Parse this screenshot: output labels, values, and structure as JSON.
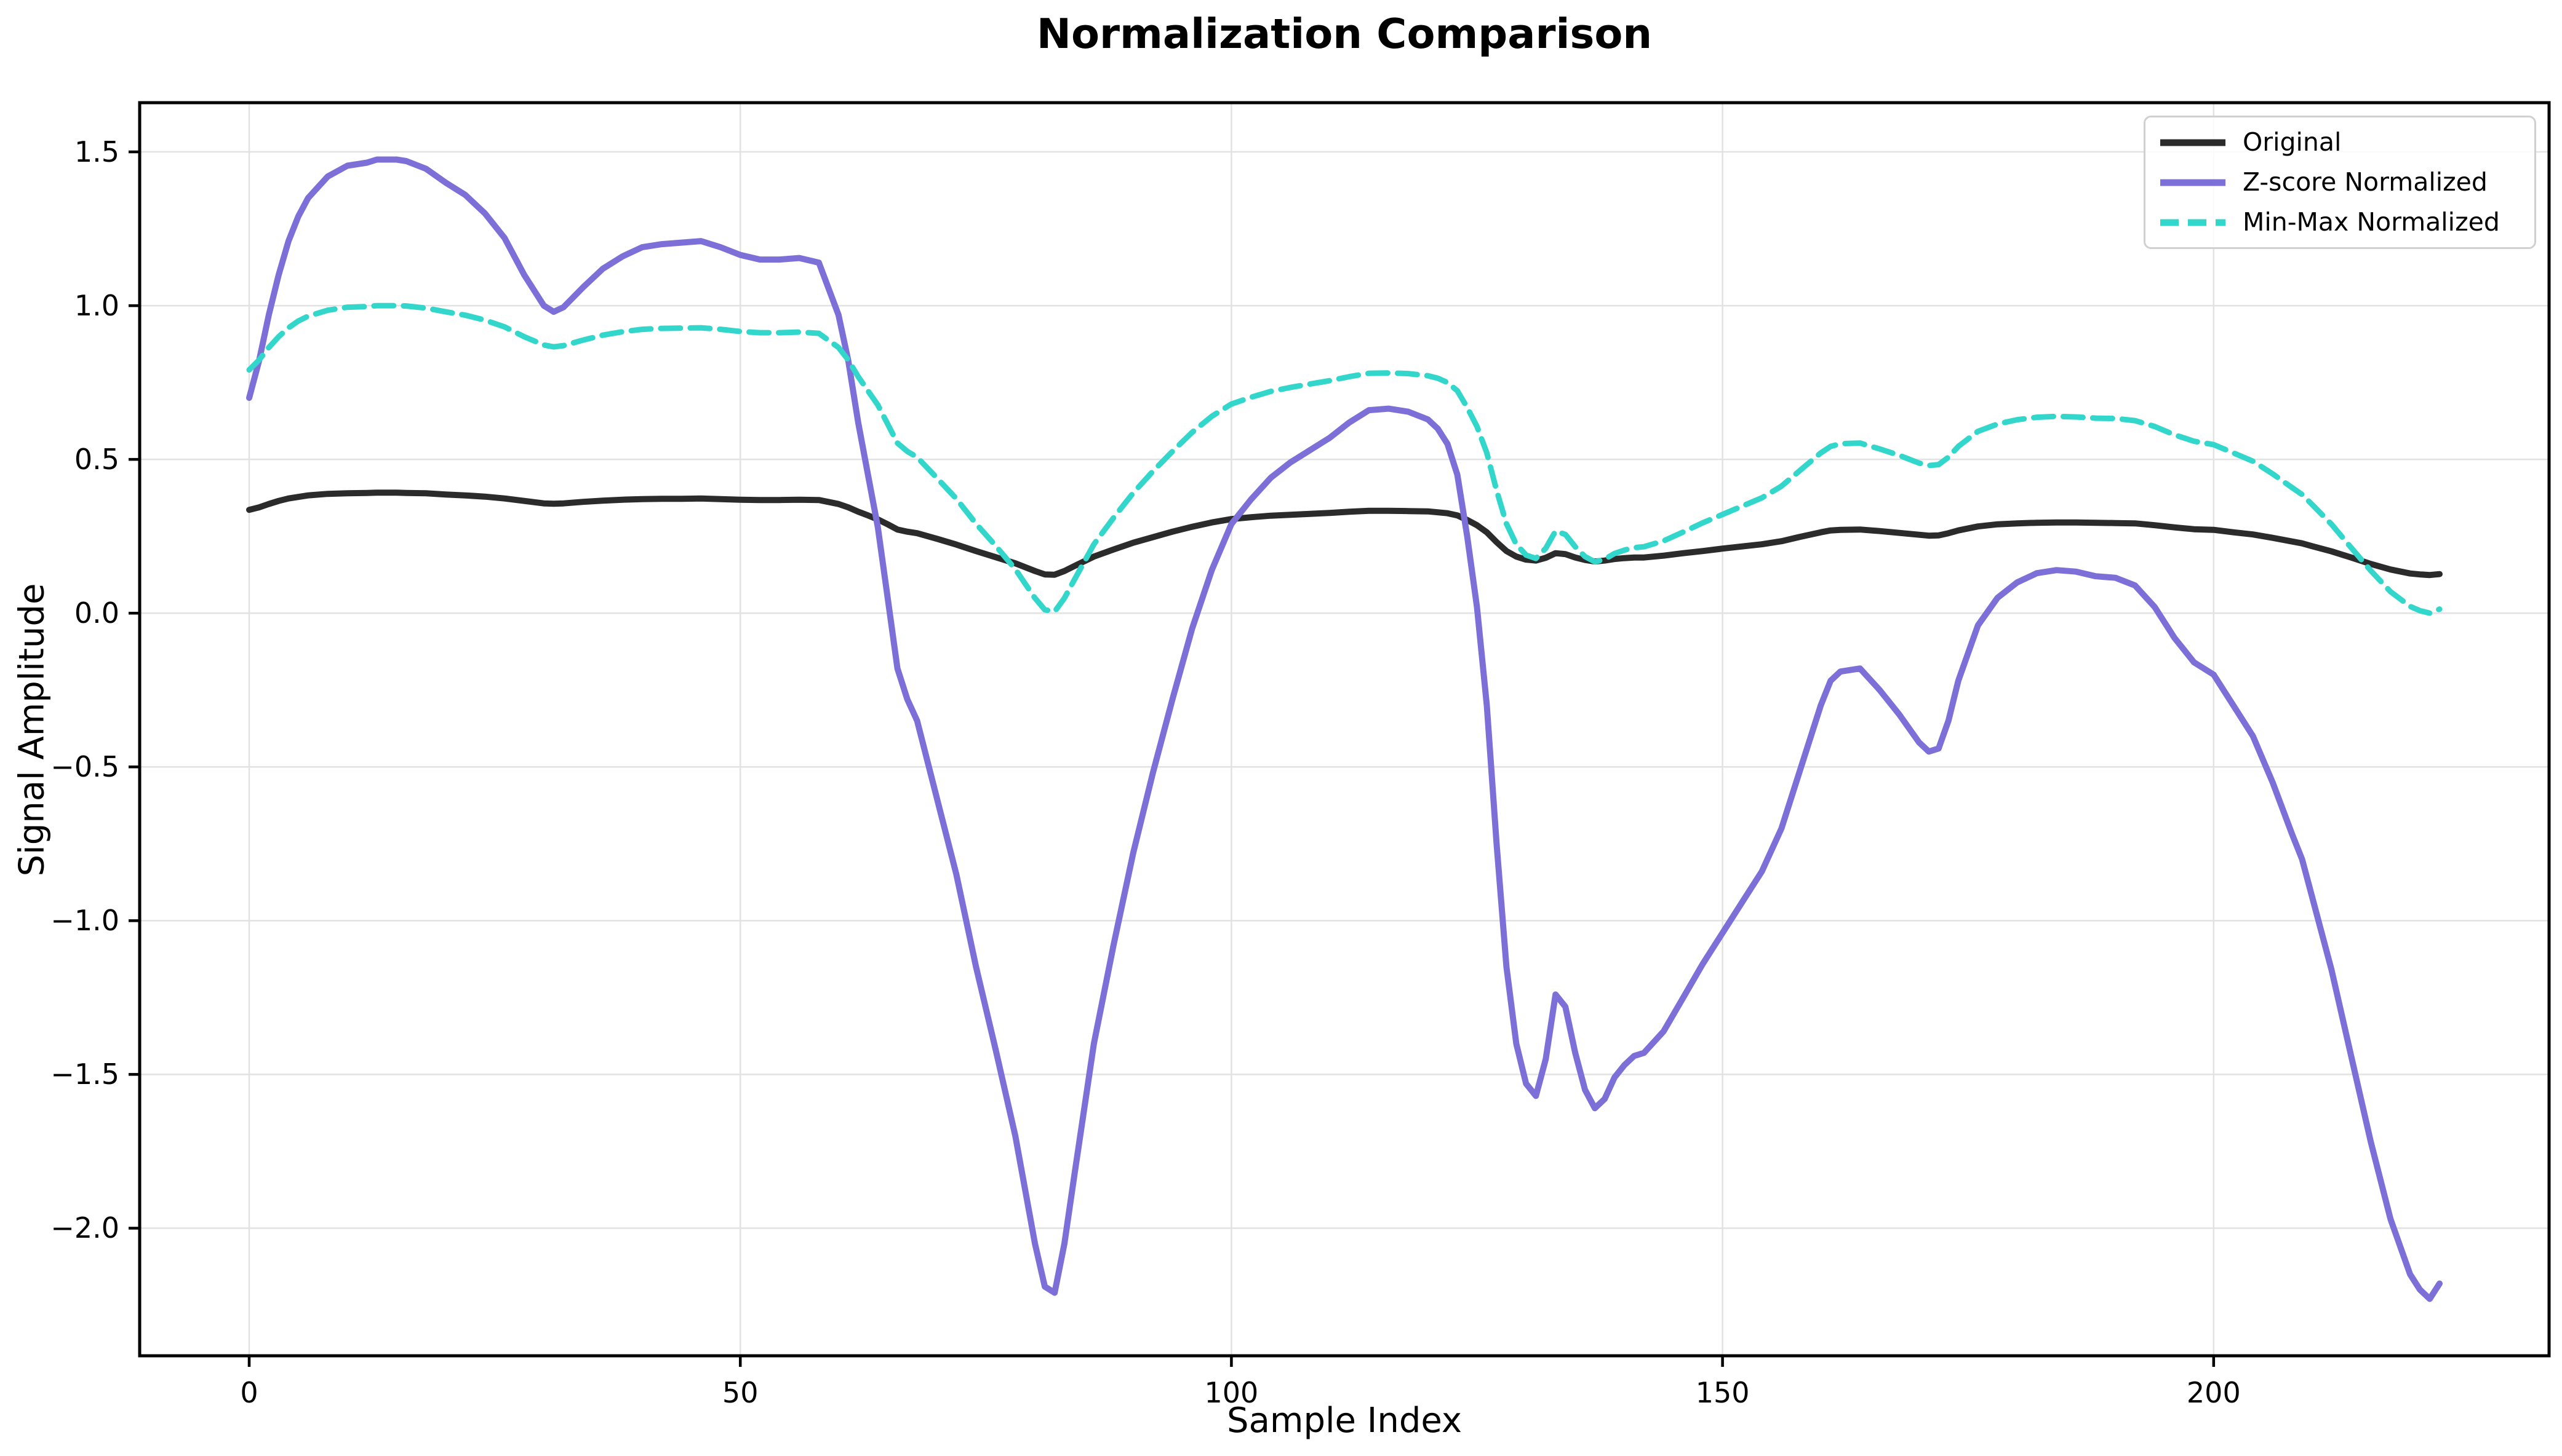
{
  "page": {
    "background": "#ffffff"
  },
  "chart_data": {
    "type": "line",
    "title": "Normalization Comparison",
    "xlabel": "Sample Index",
    "ylabel": "Signal Amplitude",
    "xlim": [
      -11.15,
      234.15
    ],
    "ylim": [
      -2.415,
      1.66
    ],
    "xticks": [
      0,
      50,
      100,
      150,
      200
    ],
    "yticks": [
      1.5,
      1.0,
      0.5,
      0.0,
      -0.5,
      -1.0,
      -1.5,
      -2.0
    ],
    "grid": true,
    "grid_color": "#e2e2e2",
    "spine_color": "#000000",
    "legend_position": "upper right",
    "x": [
      0,
      1,
      2,
      3,
      4,
      5,
      6,
      8,
      10,
      12,
      13,
      15,
      16,
      18,
      20,
      22,
      24,
      26,
      28,
      30,
      31,
      32,
      34,
      36,
      38,
      40,
      42,
      44,
      46,
      48,
      50,
      52,
      54,
      56,
      58,
      60,
      61,
      62,
      63,
      64,
      65,
      66,
      67,
      68,
      70,
      72,
      74,
      76,
      78,
      80,
      81,
      82,
      83,
      84,
      86,
      88,
      90,
      92,
      94,
      96,
      98,
      100,
      102,
      104,
      106,
      108,
      110,
      112,
      114,
      116,
      118,
      120,
      121,
      122,
      123,
      124,
      125,
      126,
      127,
      128,
      129,
      130,
      131,
      132,
      133,
      134,
      135,
      136,
      137,
      138,
      139,
      140,
      141,
      142,
      144,
      146,
      148,
      150,
      152,
      154,
      156,
      158,
      160,
      161,
      162,
      164,
      166,
      168,
      170,
      171,
      172,
      173,
      174,
      176,
      178,
      180,
      182,
      184,
      186,
      188,
      190,
      192,
      194,
      196,
      198,
      200,
      202,
      204,
      206,
      208,
      209,
      210,
      212,
      214,
      216,
      218,
      220,
      221,
      222,
      223
    ],
    "series": [
      {
        "name": "Original",
        "color": "#2b2b2b",
        "style": "solid",
        "line_width": 10,
        "values": [
          0.336,
          0.344,
          0.355,
          0.365,
          0.373,
          0.378,
          0.383,
          0.388,
          0.39,
          0.391,
          0.392,
          0.392,
          0.391,
          0.39,
          0.386,
          0.383,
          0.379,
          0.373,
          0.365,
          0.357,
          0.356,
          0.357,
          0.362,
          0.366,
          0.369,
          0.371,
          0.372,
          0.372,
          0.373,
          0.371,
          0.369,
          0.368,
          0.368,
          0.369,
          0.368,
          0.355,
          0.344,
          0.33,
          0.318,
          0.305,
          0.289,
          0.272,
          0.265,
          0.26,
          0.242,
          0.223,
          0.202,
          0.182,
          0.162,
          0.137,
          0.126,
          0.125,
          0.137,
          0.153,
          0.184,
          0.207,
          0.229,
          0.247,
          0.265,
          0.281,
          0.295,
          0.306,
          0.312,
          0.317,
          0.32,
          0.323,
          0.326,
          0.33,
          0.333,
          0.333,
          0.332,
          0.331,
          0.328,
          0.325,
          0.318,
          0.303,
          0.286,
          0.263,
          0.231,
          0.202,
          0.184,
          0.174,
          0.171,
          0.18,
          0.195,
          0.192,
          0.181,
          0.173,
          0.168,
          0.171,
          0.176,
          0.179,
          0.181,
          0.181,
          0.187,
          0.195,
          0.202,
          0.21,
          0.217,
          0.224,
          0.234,
          0.249,
          0.263,
          0.269,
          0.271,
          0.272,
          0.267,
          0.261,
          0.255,
          0.252,
          0.253,
          0.26,
          0.269,
          0.282,
          0.289,
          0.292,
          0.294,
          0.295,
          0.295,
          0.294,
          0.293,
          0.292,
          0.286,
          0.279,
          0.273,
          0.271,
          0.263,
          0.256,
          0.245,
          0.233,
          0.227,
          0.218,
          0.201,
          0.181,
          0.16,
          0.142,
          0.129,
          0.126,
          0.124,
          0.127
        ]
      },
      {
        "name": "Z-score Normalized",
        "color": "#7d6fd8",
        "style": "solid",
        "line_width": 10,
        "values": [
          0.7,
          0.82,
          0.97,
          1.1,
          1.21,
          1.29,
          1.35,
          1.42,
          1.455,
          1.465,
          1.475,
          1.475,
          1.47,
          1.445,
          1.4,
          1.36,
          1.3,
          1.22,
          1.1,
          1.0,
          0.98,
          0.995,
          1.06,
          1.12,
          1.16,
          1.19,
          1.2,
          1.205,
          1.21,
          1.19,
          1.165,
          1.15,
          1.15,
          1.155,
          1.14,
          0.97,
          0.82,
          0.62,
          0.45,
          0.28,
          0.05,
          -0.18,
          -0.28,
          -0.35,
          -0.6,
          -0.85,
          -1.15,
          -1.42,
          -1.7,
          -2.05,
          -2.19,
          -2.21,
          -2.05,
          -1.83,
          -1.4,
          -1.08,
          -0.78,
          -0.52,
          -0.28,
          -0.05,
          0.14,
          0.29,
          0.37,
          0.44,
          0.49,
          0.53,
          0.57,
          0.62,
          0.66,
          0.665,
          0.655,
          0.63,
          0.6,
          0.55,
          0.45,
          0.25,
          0.02,
          -0.3,
          -0.75,
          -1.15,
          -1.4,
          -1.53,
          -1.57,
          -1.45,
          -1.24,
          -1.28,
          -1.43,
          -1.55,
          -1.61,
          -1.58,
          -1.51,
          -1.47,
          -1.44,
          -1.43,
          -1.36,
          -1.25,
          -1.14,
          -1.04,
          -0.94,
          -0.84,
          -0.7,
          -0.5,
          -0.3,
          -0.22,
          -0.19,
          -0.18,
          -0.25,
          -0.33,
          -0.42,
          -0.45,
          -0.44,
          -0.35,
          -0.22,
          -0.04,
          0.05,
          0.1,
          0.13,
          0.14,
          0.135,
          0.12,
          0.115,
          0.09,
          0.02,
          -0.08,
          -0.16,
          -0.2,
          -0.3,
          -0.4,
          -0.55,
          -0.72,
          -0.8,
          -0.92,
          -1.16,
          -1.44,
          -1.72,
          -1.97,
          -2.15,
          -2.2,
          -2.23,
          -2.18
        ]
      },
      {
        "name": "Min-Max Normalized",
        "color": "#33d6cb",
        "style": "dashed",
        "line_width": 9,
        "dash": [
          32,
          16
        ],
        "values": [
          0.791,
          0.823,
          0.864,
          0.899,
          0.928,
          0.95,
          0.966,
          0.985,
          0.995,
          0.997,
          1.0,
          1.0,
          0.999,
          0.992,
          0.98,
          0.969,
          0.953,
          0.931,
          0.899,
          0.872,
          0.866,
          0.87,
          0.888,
          0.904,
          0.915,
          0.923,
          0.926,
          0.927,
          0.928,
          0.923,
          0.916,
          0.912,
          0.912,
          0.914,
          0.91,
          0.864,
          0.823,
          0.769,
          0.723,
          0.677,
          0.615,
          0.553,
          0.526,
          0.507,
          0.44,
          0.372,
          0.291,
          0.219,
          0.143,
          0.049,
          0.011,
          0.005,
          0.049,
          0.108,
          0.224,
          0.31,
          0.391,
          0.461,
          0.526,
          0.588,
          0.64,
          0.68,
          0.702,
          0.721,
          0.734,
          0.745,
          0.756,
          0.769,
          0.78,
          0.781,
          0.779,
          0.772,
          0.764,
          0.75,
          0.723,
          0.669,
          0.607,
          0.521,
          0.399,
          0.291,
          0.224,
          0.189,
          0.178,
          0.211,
          0.267,
          0.256,
          0.216,
          0.184,
          0.167,
          0.175,
          0.194,
          0.205,
          0.213,
          0.216,
          0.235,
          0.264,
          0.294,
          0.321,
          0.348,
          0.375,
          0.413,
          0.467,
          0.521,
          0.542,
          0.551,
          0.553,
          0.534,
          0.513,
          0.488,
          0.48,
          0.483,
          0.507,
          0.542,
          0.591,
          0.615,
          0.629,
          0.637,
          0.64,
          0.638,
          0.634,
          0.633,
          0.626,
          0.607,
          0.58,
          0.559,
          0.548,
          0.521,
          0.494,
          0.453,
          0.408,
          0.386,
          0.354,
          0.289,
          0.213,
          0.138,
          0.07,
          0.022,
          0.008,
          0.0,
          0.013
        ]
      }
    ]
  }
}
